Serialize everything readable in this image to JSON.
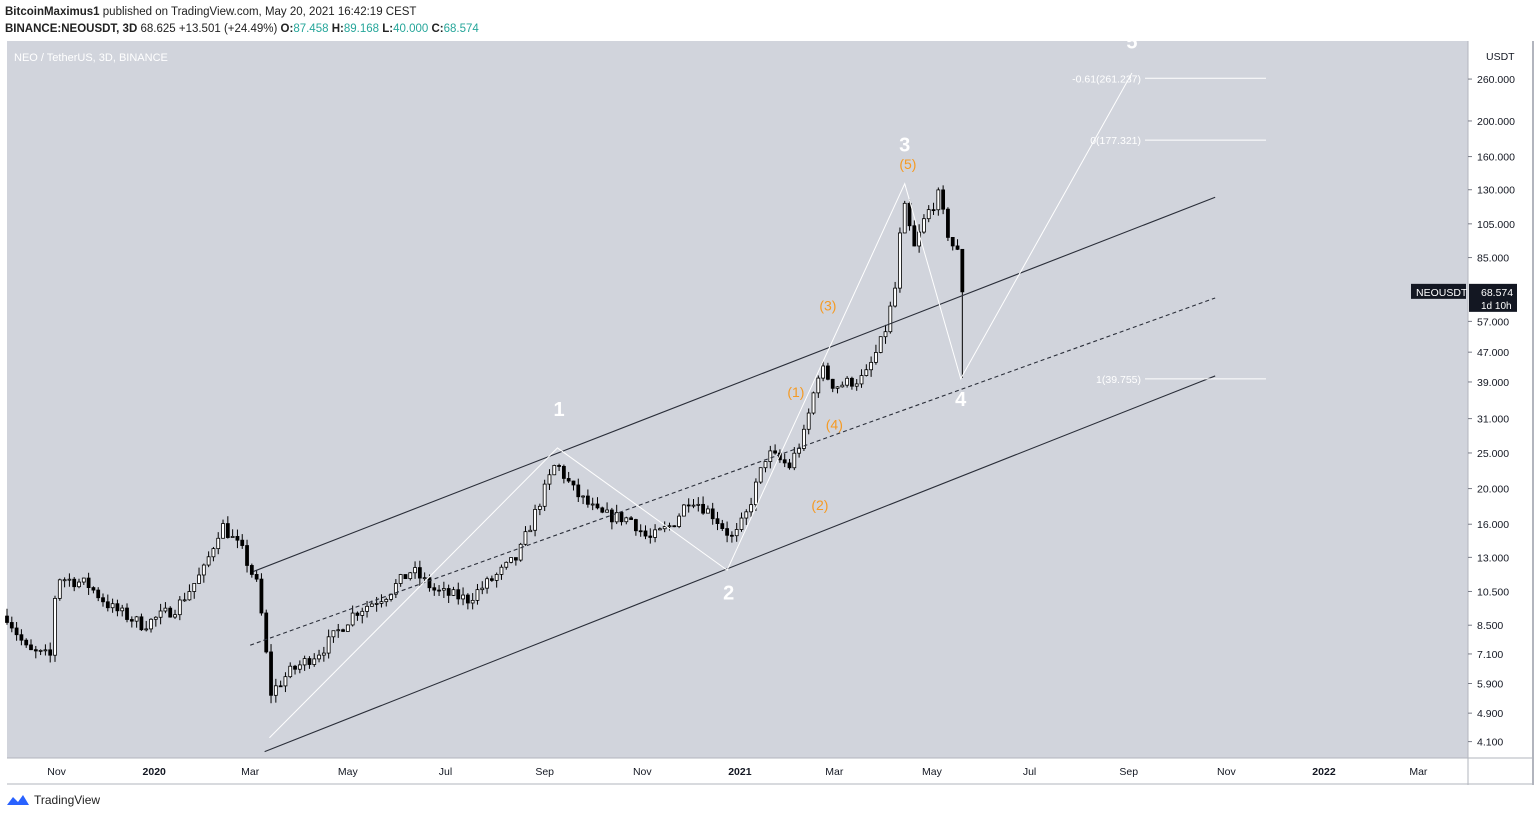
{
  "header": {
    "publisher": "BitcoinMaximus1",
    "published_text": " published on TradingView.com, May 20, 2021 16:42:19 CEST",
    "symbol": "BINANCE:NEOUSDT, 3D",
    "change_value": "68.625",
    "change": "+13.501 (+24.49%)",
    "o_label": "O:",
    "o": "87.458",
    "h_label": "H:",
    "h": "89.168",
    "l_label": "L:",
    "l": "40.000",
    "c_label": "C:",
    "c": "68.574"
  },
  "chart_data": {
    "type": "candlestick",
    "title": "NEO / TetherUS, 3D, BINANCE",
    "y_scale": "log",
    "y_unit": "USDT",
    "ylim": [
      3.7,
      330
    ],
    "y_ticks": [
      "260.000",
      "200.000",
      "160.000",
      "130.000",
      "105.000",
      "85.000",
      "57.000",
      "47.000",
      "39.000",
      "31.000",
      "25.000",
      "20.000",
      "16.000",
      "13.000",
      "10.500",
      "8.500",
      "7.100",
      "5.900",
      "4.900",
      "4.100"
    ],
    "x_ticks": [
      "Nov",
      "2020",
      "Mar",
      "May",
      "Jul",
      "Sep",
      "Nov",
      "2021",
      "Mar",
      "May",
      "Jul",
      "Sep",
      "Nov",
      "2022",
      "Mar"
    ],
    "price_label": {
      "symbol": "NEOUSDT",
      "value": "68.574",
      "countdown": "1d 10h"
    },
    "close_path": [
      [
        "2019-10-01",
        9.0
      ],
      [
        "2019-10-14",
        7.2
      ],
      [
        "2019-10-28",
        7.0
      ],
      [
        "2019-11-01",
        11.5
      ],
      [
        "2019-11-20",
        11.0
      ],
      [
        "2019-12-05",
        9.5
      ],
      [
        "2019-12-25",
        8.5
      ],
      [
        "2020-01-15",
        9.5
      ],
      [
        "2020-02-01",
        12.0
      ],
      [
        "2020-02-12",
        16.0
      ],
      [
        "2020-02-25",
        13.5
      ],
      [
        "2020-03-05",
        11.0
      ],
      [
        "2020-03-10",
        8.0
      ],
      [
        "2020-03-13",
        5.5
      ],
      [
        "2020-03-25",
        6.3
      ],
      [
        "2020-04-15",
        7.3
      ],
      [
        "2020-05-05",
        9.2
      ],
      [
        "2020-05-25",
        10.3
      ],
      [
        "2020-06-10",
        12.0
      ],
      [
        "2020-06-25",
        10.5
      ],
      [
        "2020-07-15",
        10.0
      ],
      [
        "2020-08-01",
        11.5
      ],
      [
        "2020-08-15",
        13.0
      ],
      [
        "2020-08-28",
        18.0
      ],
      [
        "2020-09-08",
        23.5
      ],
      [
        "2020-09-20",
        19.5
      ],
      [
        "2020-10-05",
        17.0
      ],
      [
        "2020-10-25",
        16.5
      ],
      [
        "2020-11-05",
        14.5
      ],
      [
        "2020-11-20",
        16.0
      ],
      [
        "2020-12-01",
        19.0
      ],
      [
        "2020-12-15",
        17.0
      ],
      [
        "2020-12-28",
        14.5
      ],
      [
        "2021-01-05",
        17.0
      ],
      [
        "2021-01-18",
        25.0
      ],
      [
        "2021-02-01",
        23.0
      ],
      [
        "2021-02-10",
        28.0
      ],
      [
        "2021-02-20",
        43.0
      ],
      [
        "2021-03-01",
        38.0
      ],
      [
        "2021-03-20",
        40.0
      ],
      [
        "2021-04-01",
        52.0
      ],
      [
        "2021-04-08",
        70.0
      ],
      [
        "2021-04-13",
        120.0
      ],
      [
        "2021-04-20",
        90.0
      ],
      [
        "2021-04-27",
        110.0
      ],
      [
        "2021-05-05",
        125.0
      ],
      [
        "2021-05-12",
        95.0
      ],
      [
        "2021-05-17",
        87.5
      ],
      [
        "2021-05-20",
        68.574
      ]
    ],
    "annotations": {
      "wave_labels": [
        {
          "text": "1",
          "date": "2020-09-10",
          "price": 31.5,
          "color": "#ffffff"
        },
        {
          "text": "2",
          "date": "2020-12-25",
          "price": 10.0,
          "color": "#ffffff"
        },
        {
          "text": "3",
          "date": "2021-04-14",
          "price": 165,
          "color": "#ffffff"
        },
        {
          "text": "4",
          "date": "2021-05-19",
          "price": 33.5,
          "color": "#ffffff"
        },
        {
          "text": "5",
          "date": "2021-09-03",
          "price": 315,
          "color": "#ffffff"
        },
        {
          "text": "(1)",
          "date": "2021-02-05",
          "price": 35.5,
          "color": "#f59a23"
        },
        {
          "text": "(2)",
          "date": "2021-02-20",
          "price": 17.5,
          "color": "#f59a23"
        },
        {
          "text": "(3)",
          "date": "2021-02-25",
          "price": 61,
          "color": "#f59a23"
        },
        {
          "text": "(4)",
          "date": "2021-03-01",
          "price": 29,
          "color": "#f59a23"
        },
        {
          "text": "(5)",
          "date": "2021-04-16",
          "price": 148,
          "color": "#f59a23"
        }
      ],
      "fib_levels": [
        {
          "label": "-0.61(261.237)",
          "price": 261.237
        },
        {
          "label": "0(177.321)",
          "price": 177.321
        },
        {
          "label": "1(39.755)",
          "price": 39.755
        }
      ],
      "channel": {
        "upper": [
          [
            "2020-03-03",
            11.9
          ],
          [
            "2021-10-25",
            124
          ]
        ],
        "lower": [
          [
            "2020-03-10",
            3.85
          ],
          [
            "2021-10-25",
            40.5
          ]
        ],
        "middle": [
          [
            "2020-03-01",
            7.5
          ],
          [
            "2021-10-25",
            66
          ]
        ]
      },
      "wave_path": [
        [
          "2020-03-13",
          4.2
        ],
        [
          "2020-09-09",
          25.8
        ],
        [
          "2020-12-24",
          12.0
        ],
        [
          "2021-04-14",
          135
        ],
        [
          "2021-05-19",
          39.8
        ],
        [
          "2021-09-03",
          270
        ]
      ]
    },
    "colors": {
      "background": "#d1d4dc",
      "candle": "#000000",
      "channel": "#2a2e39",
      "wave": "#ffffff",
      "subwave": "#f59a23"
    }
  },
  "footer": {
    "brand": "TradingView"
  }
}
